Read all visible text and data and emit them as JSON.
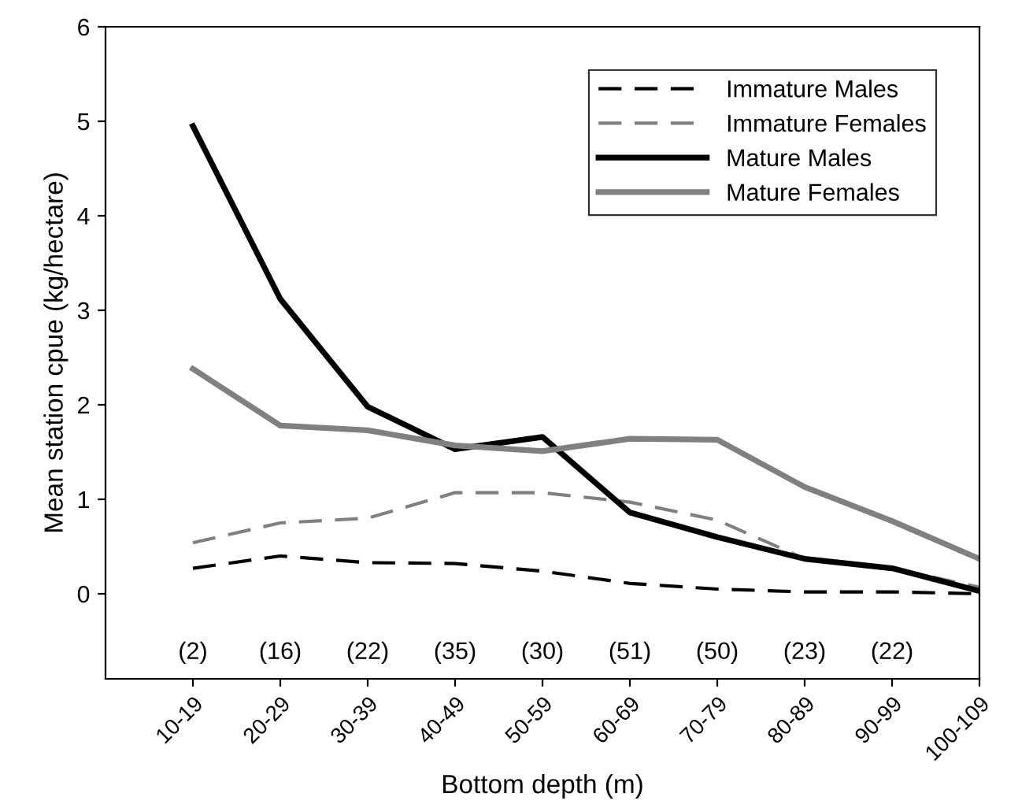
{
  "chart_data": {
    "type": "line",
    "xlabel": "Bottom depth (m)",
    "ylabel": "Mean station cpue (kg/hectare)",
    "categories": [
      "10-19",
      "20-29",
      "30-39",
      "40-49",
      "50-59",
      "60-69",
      "70-79",
      "80-89",
      "90-99",
      "100-109"
    ],
    "series": [
      {
        "name": "Immature Males",
        "color": "#000000",
        "line_style": "dashed",
        "values": [
          0.27,
          0.4,
          0.33,
          0.32,
          0.24,
          0.11,
          0.05,
          0.02,
          0.02,
          0.0
        ]
      },
      {
        "name": "Immature Females",
        "color": "#808080",
        "line_style": "dashed",
        "values": [
          0.54,
          0.75,
          0.8,
          1.07,
          1.07,
          0.97,
          0.78,
          0.37,
          0.27,
          0.07
        ]
      },
      {
        "name": "Mature Males",
        "color": "#000000",
        "line_style": "solid",
        "values": [
          4.95,
          3.12,
          1.98,
          1.53,
          1.66,
          0.86,
          0.6,
          0.37,
          0.27,
          0.03
        ]
      },
      {
        "name": "Mature Females",
        "color": "#808080",
        "line_style": "solid",
        "values": [
          2.38,
          1.78,
          1.73,
          1.57,
          1.51,
          1.64,
          1.63,
          1.13,
          0.77,
          0.37
        ]
      }
    ],
    "ylim": [
      -0.9,
      6
    ],
    "yticks": [
      0,
      1,
      2,
      3,
      4,
      5,
      6
    ],
    "grid": false,
    "legend": "top right",
    "marker": "none",
    "annotations": [
      "(2)",
      "(16)",
      "(22)",
      "(35)",
      "(30)",
      "(51)",
      "(50)",
      "(23)",
      "(22)"
    ]
  }
}
